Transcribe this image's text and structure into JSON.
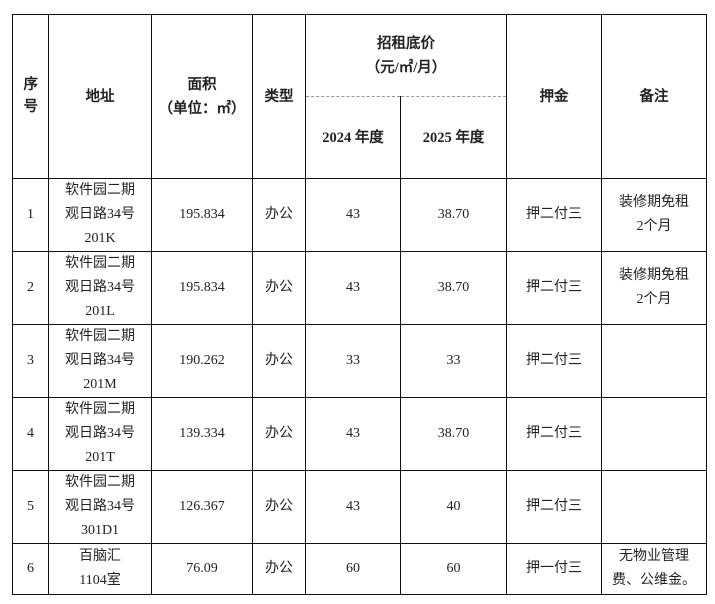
{
  "header": {
    "seq": "序号",
    "address": "地址",
    "area": "面积",
    "area_unit": "（单位：㎡）",
    "type": "类型",
    "price": "招租底价",
    "price_unit": "（元/㎡/月）",
    "year_2024": "2024 年度",
    "year_2025": "2025 年度",
    "deposit": "押金",
    "remarks": "备注"
  },
  "rows": [
    {
      "seq": "1",
      "address_line1": "软件园二期",
      "address_line2": "观日路34号",
      "address_line3": "201K",
      "area": "195.834",
      "type": "办公",
      "price_2024": "43",
      "price_2025": "38.70",
      "deposit": "押二付三",
      "remark_line1": "装修期免租",
      "remark_line2": "2个月"
    },
    {
      "seq": "2",
      "address_line1": "软件园二期",
      "address_line2": "观日路34号",
      "address_line3": "201L",
      "area": "195.834",
      "type": "办公",
      "price_2024": "43",
      "price_2025": "38.70",
      "deposit": "押二付三",
      "remark_line1": "装修期免租",
      "remark_line2": "2个月"
    },
    {
      "seq": "3",
      "address_line1": "软件园二期",
      "address_line2": "观日路34号",
      "address_line3": "201M",
      "area": "190.262",
      "type": "办公",
      "price_2024": "33",
      "price_2025": "33",
      "deposit": "押二付三",
      "remark_line1": "",
      "remark_line2": ""
    },
    {
      "seq": "4",
      "address_line1": "软件园二期",
      "address_line2": "观日路34号",
      "address_line3": "201T",
      "area": "139.334",
      "type": "办公",
      "price_2024": "43",
      "price_2025": "38.70",
      "deposit": "押二付三",
      "remark_line1": "",
      "remark_line2": ""
    },
    {
      "seq": "5",
      "address_line1": "软件园二期",
      "address_line2": "观日路34号",
      "address_line3": "301D1",
      "area": "126.367",
      "type": "办公",
      "price_2024": "43",
      "price_2025": "40",
      "deposit": "押二付三",
      "remark_line1": "",
      "remark_line2": ""
    },
    {
      "seq": "6",
      "address_line1": "百脑汇",
      "address_line2": "1104室",
      "address_line3": "",
      "area": "76.09",
      "type": "办公",
      "price_2024": "60",
      "price_2025": "60",
      "deposit": "押一付三",
      "remark_line1": "无物业管理",
      "remark_line2": "费、公维金。"
    }
  ]
}
